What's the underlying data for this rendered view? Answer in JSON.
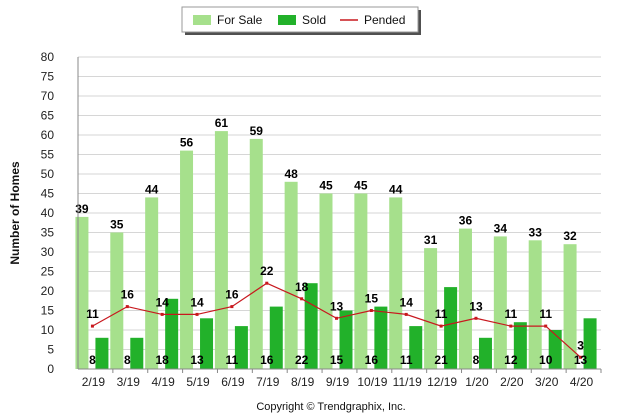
{
  "chart_data": {
    "type": "bar",
    "ylabel": "Number of Homes",
    "ylim": [
      0,
      80
    ],
    "ytick_step": 5,
    "grid": true,
    "legend_position": "top-center",
    "categories": [
      "2/19",
      "3/19",
      "4/19",
      "5/19",
      "6/19",
      "7/19",
      "8/19",
      "9/19",
      "10/19",
      "11/19",
      "12/19",
      "1/20",
      "2/20",
      "3/20",
      "4/20"
    ],
    "series": [
      {
        "name": "For Sale",
        "type": "bar",
        "color": "#a6e08c",
        "values": [
          39,
          35,
          44,
          56,
          61,
          59,
          48,
          45,
          45,
          44,
          31,
          36,
          34,
          33,
          32
        ]
      },
      {
        "name": "Sold",
        "type": "bar",
        "color": "#22b12a",
        "values": [
          8,
          8,
          18,
          13,
          11,
          16,
          22,
          15,
          16,
          11,
          21,
          8,
          12,
          10,
          13
        ]
      },
      {
        "name": "Pended",
        "type": "line",
        "color": "#c8181e",
        "values": [
          11,
          16,
          14,
          14,
          16,
          22,
          18,
          13,
          15,
          14,
          11,
          13,
          11,
          11,
          3
        ]
      }
    ]
  },
  "footer": {
    "copyright": "Copyright © Trendgraphix, Inc."
  }
}
